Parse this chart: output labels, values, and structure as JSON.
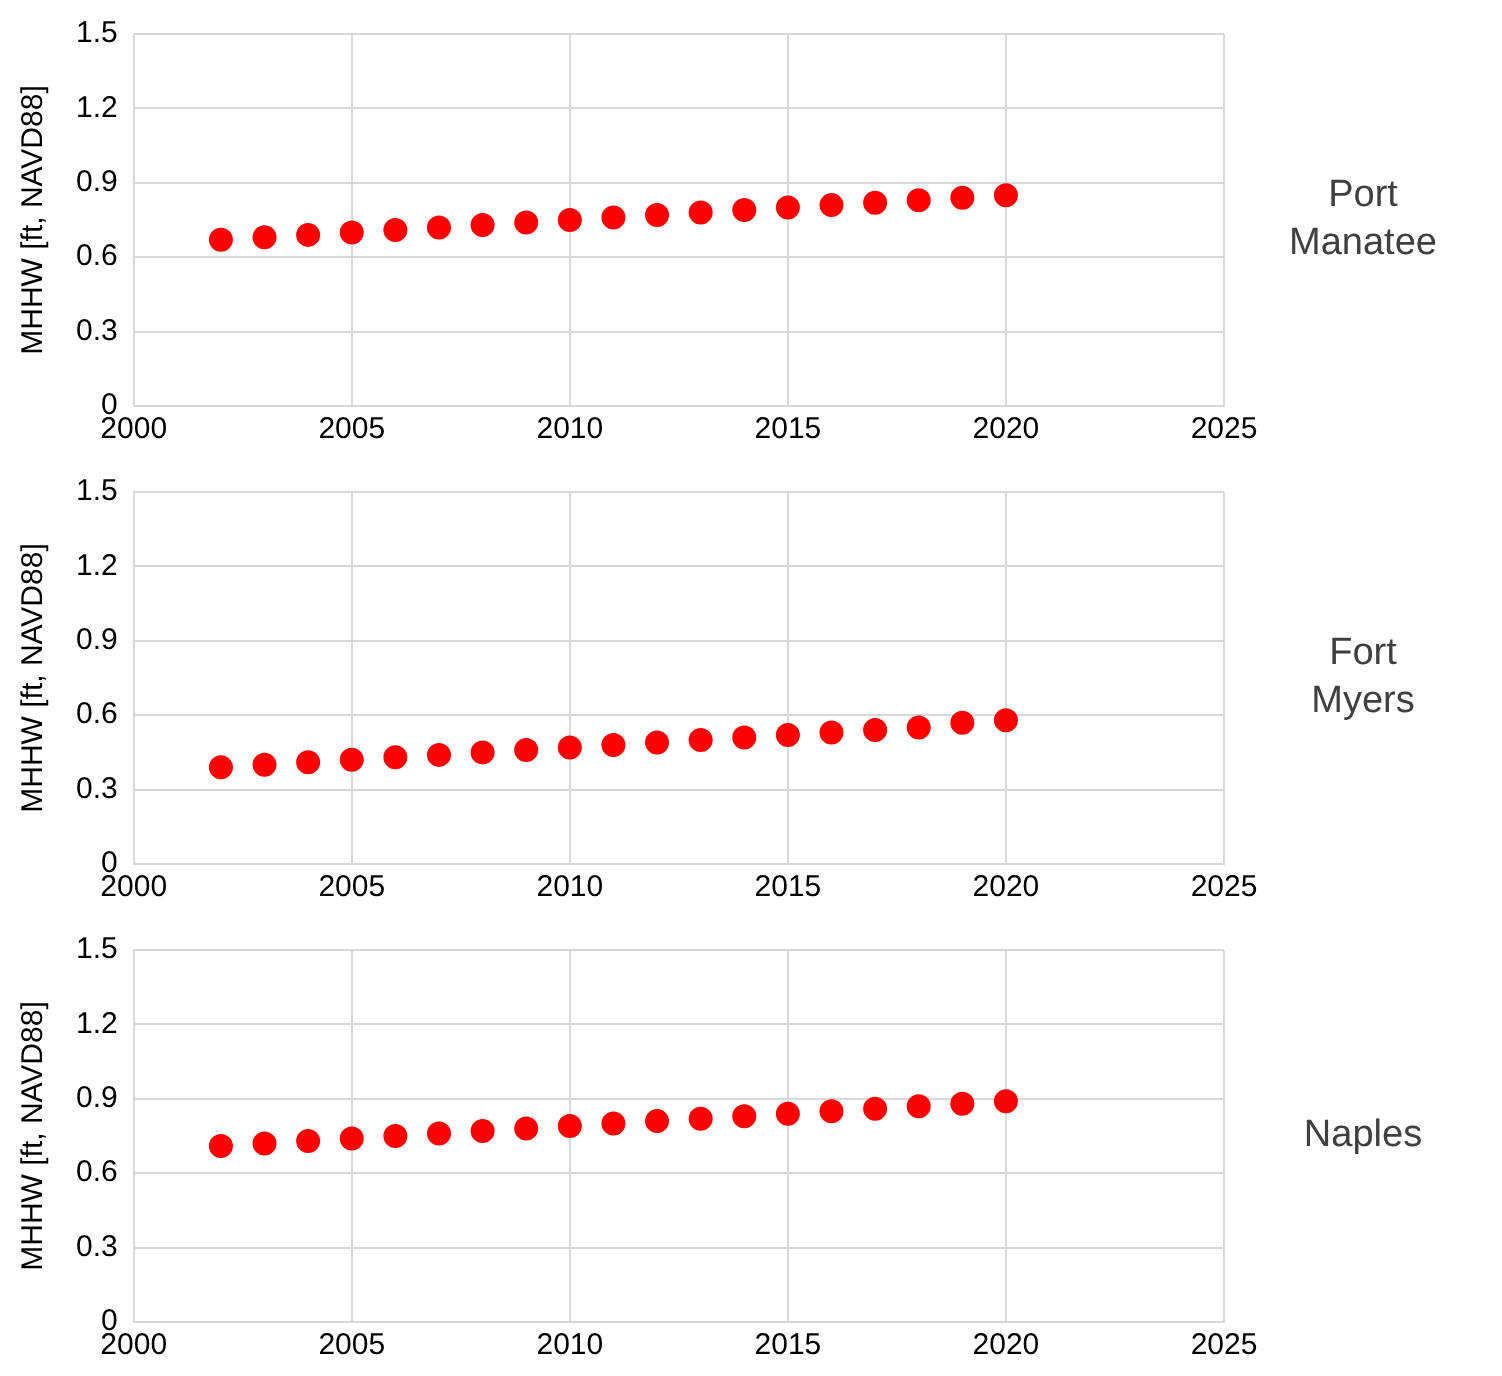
{
  "chart_data": [
    {
      "type": "scatter",
      "annotations": [
        "Port Manatee"
      ],
      "ylabel": "MHHW [ft, NAVD88]",
      "x": [
        2002,
        2003,
        2004,
        2005,
        2006,
        2007,
        2008,
        2009,
        2010,
        2011,
        2012,
        2013,
        2014,
        2015,
        2016,
        2017,
        2018,
        2019,
        2020
      ],
      "series": [
        {
          "color": "#ff0000",
          "values": [
            0.67,
            0.68,
            0.69,
            0.7,
            0.71,
            0.72,
            0.73,
            0.74,
            0.75,
            0.76,
            0.77,
            0.78,
            0.79,
            0.8,
            0.81,
            0.82,
            0.83,
            0.84,
            0.85
          ]
        }
      ],
      "xlim": [
        2000,
        2025
      ],
      "xticks": [
        2000,
        2005,
        2010,
        2015,
        2020,
        2025
      ],
      "ylim": [
        0,
        1.5
      ],
      "yticks": [
        0,
        0.3,
        0.6,
        0.9,
        1.2,
        1.5
      ],
      "grid": true,
      "legend": false,
      "marker": "circle"
    },
    {
      "type": "scatter",
      "annotations": [
        "Fort Myers"
      ],
      "ylabel": "MHHW [ft, NAVD88]",
      "x": [
        2002,
        2003,
        2004,
        2005,
        2006,
        2007,
        2008,
        2009,
        2010,
        2011,
        2012,
        2013,
        2014,
        2015,
        2016,
        2017,
        2018,
        2019,
        2020
      ],
      "series": [
        {
          "color": "#ff0000",
          "values": [
            0.39,
            0.4,
            0.41,
            0.42,
            0.43,
            0.44,
            0.45,
            0.46,
            0.47,
            0.48,
            0.49,
            0.5,
            0.51,
            0.52,
            0.53,
            0.54,
            0.55,
            0.57,
            0.58
          ]
        }
      ],
      "xlim": [
        2000,
        2025
      ],
      "xticks": [
        2000,
        2005,
        2010,
        2015,
        2020,
        2025
      ],
      "ylim": [
        0,
        1.5
      ],
      "yticks": [
        0,
        0.3,
        0.6,
        0.9,
        1.2,
        1.5
      ],
      "grid": true,
      "legend": false,
      "marker": "circle"
    },
    {
      "type": "scatter",
      "annotations": [
        "Naples"
      ],
      "ylabel": "MHHW [ft, NAVD88]",
      "x": [
        2002,
        2003,
        2004,
        2005,
        2006,
        2007,
        2008,
        2009,
        2010,
        2011,
        2012,
        2013,
        2014,
        2015,
        2016,
        2017,
        2018,
        2019,
        2020
      ],
      "series": [
        {
          "color": "#ff0000",
          "values": [
            0.71,
            0.72,
            0.73,
            0.74,
            0.75,
            0.76,
            0.77,
            0.78,
            0.79,
            0.8,
            0.81,
            0.82,
            0.83,
            0.84,
            0.85,
            0.86,
            0.87,
            0.88,
            0.89
          ]
        }
      ],
      "xlim": [
        2000,
        2025
      ],
      "xticks": [
        2000,
        2005,
        2010,
        2015,
        2020,
        2025
      ],
      "ylim": [
        0,
        1.5
      ],
      "yticks": [
        0,
        0.3,
        0.6,
        0.9,
        1.2,
        1.5
      ],
      "grid": true,
      "legend": false,
      "marker": "circle"
    }
  ]
}
